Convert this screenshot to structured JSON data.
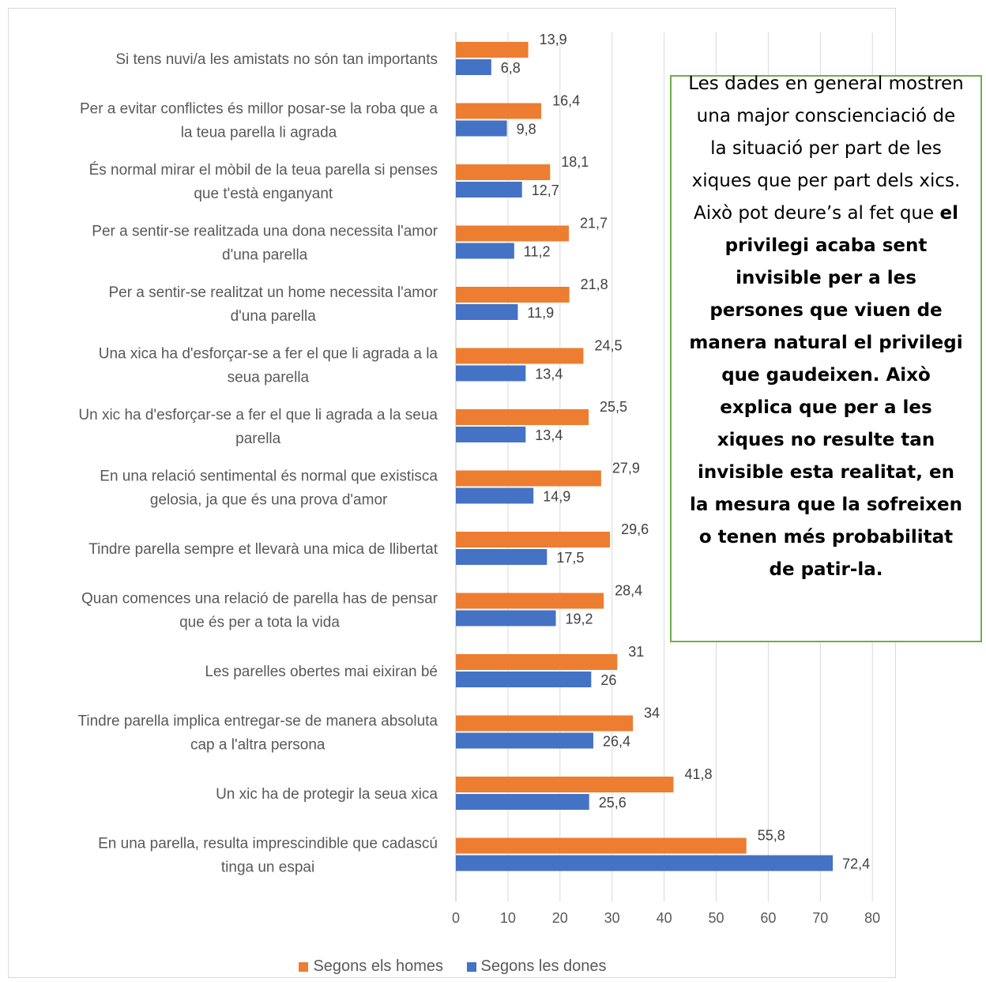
{
  "chart_data": {
    "type": "bar",
    "orientation": "horizontal",
    "categories": [
      "Si tens nuvi/a les amistats no són tan importants",
      "Per a evitar conflictes és millor posar-se la roba que a la teua parella li agrada",
      "És normal mirar el mòbil de la teua parella si penses que t'està enganyant",
      "Per a sentir-se realitzada una dona necessita l'amor d'una parella",
      "Per a sentir-se realitzat un home necessita l'amor d'una parella",
      "Una xica ha d'esforçar-se a fer el que li agrada a la seua parella",
      "Un xic ha d'esforçar-se a fer el que li agrada a la seua parella",
      "En una relació sentimental és normal que existisca gelosia, ja que és una prova d'amor",
      "Tindre parella sempre et llevarà una mica de llibertat",
      "Quan comences una relació de parella has de pensar que és per a tota la vida",
      "Les parelles obertes mai eixiran bé",
      "Tindre parella implica entregar-se de manera absoluta cap a l'altra persona",
      "Un xic ha de protegir la seua xica",
      "En una parella, resulta imprescindible que cadascú tinga un espai"
    ],
    "category_lines": [
      [
        "Si tens nuvi/a les amistats no són tan importants"
      ],
      [
        "Per a evitar conflictes és millor posar-se la roba que a",
        "la teua parella li agrada"
      ],
      [
        "És normal mirar el mòbil de la teua parella si penses",
        "que t'està enganyant"
      ],
      [
        "Per a sentir-se realitzada una dona necessita l'amor",
        "d'una parella"
      ],
      [
        "Per a sentir-se realitzat un home necessita l'amor",
        "d'una parella"
      ],
      [
        "Una xica ha d'esforçar-se a fer el que li agrada a la",
        "seua parella"
      ],
      [
        "Un xic ha d'esforçar-se a fer el que li agrada a la seua",
        "parella"
      ],
      [
        "En una relació sentimental és normal que existisca",
        "gelosia, ja que és una prova d'amor"
      ],
      [
        "Tindre parella sempre et llevarà una mica de llibertat"
      ],
      [
        "Quan comences una relació de parella has de pensar",
        "que és per a tota la vida"
      ],
      [
        "Les parelles obertes mai eixiran bé"
      ],
      [
        "Tindre parella implica entregar-se de manera absoluta",
        "cap a l'altra persona"
      ],
      [
        "Un xic ha de protegir la seua xica"
      ],
      [
        "En una parella, resulta imprescindible que cadascú",
        "tinga un espai"
      ]
    ],
    "series": [
      {
        "name": "Segons els homes",
        "color": "#ed7d31",
        "values": [
          13.9,
          16.4,
          18.1,
          21.7,
          21.8,
          24.5,
          25.5,
          27.9,
          29.6,
          28.4,
          31,
          34,
          41.8,
          55.8
        ],
        "labels": [
          "13,9",
          "16,4",
          "18,1",
          "21,7",
          "21,8",
          "24,5",
          "25,5",
          "27,9",
          "29,6",
          "28,4",
          "31",
          "34",
          "41,8",
          "55,8"
        ]
      },
      {
        "name": "Segons les dones",
        "color": "#4472c4",
        "values": [
          6.8,
          9.8,
          12.7,
          11.2,
          11.9,
          13.4,
          13.4,
          14.9,
          17.5,
          19.2,
          26,
          26.4,
          25.6,
          72.4
        ],
        "labels": [
          "6,8",
          "9,8",
          "12,7",
          "11,2",
          "11,9",
          "13,4",
          "13,4",
          "14,9",
          "17,5",
          "19,2",
          "26",
          "26,4",
          "25,6",
          "72,4"
        ]
      }
    ],
    "xlim": [
      0,
      80
    ],
    "xticks": [
      0,
      10,
      20,
      30,
      40,
      50,
      60,
      70,
      80
    ],
    "grid": true,
    "legend_position": "bottom"
  },
  "note": {
    "normal_text": "Les dades en general mostren una major conscienciació de la situació per part de les xiques que per part dels xics. Això pot deure’s al fet que ",
    "bold_text": "el privilegi acaba sent invisible per a les persones que viuen de manera natural el privilegi que gaudeixen. Això explica que per a les xiques no resulte tan invisible esta realitat, en la mesura que la sofreixen o tenen més probabilitat de patir-la."
  }
}
